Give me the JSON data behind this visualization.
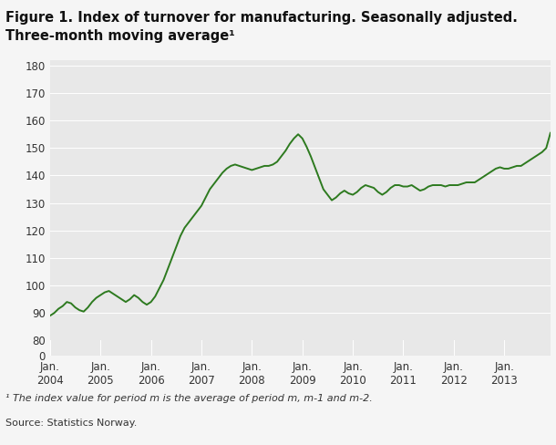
{
  "title_line1": "Figure 1. Index of turnover for manufacturing. Seasonally adjusted.",
  "title_line2": "Three-month moving average¹",
  "line_color": "#2d7a1f",
  "background_color": "#f5f5f5",
  "plot_background": "#e8e8e8",
  "ylim_main": [
    80,
    182
  ],
  "ylim_zero": [
    0,
    5
  ],
  "yticks_main": [
    80,
    90,
    100,
    110,
    120,
    130,
    140,
    150,
    160,
    170,
    180
  ],
  "footnote1": "¹ The index value for period m is the average of period m, m-1 and m-2.",
  "footnote2": "Source: Statistics Norway.",
  "xtick_labels": [
    "Jan.\n2004",
    "Jan.\n2005",
    "Jan.\n2006",
    "Jan.\n2007",
    "Jan.\n2008",
    "Jan.\n2009",
    "Jan.\n2010",
    "Jan.\n2011",
    "Jan.\n2012",
    "Jan.\n2013"
  ],
  "xtick_positions": [
    0,
    12,
    24,
    36,
    48,
    60,
    72,
    84,
    96,
    108
  ],
  "values": [
    89.0,
    90.0,
    91.5,
    92.5,
    94.0,
    93.5,
    92.0,
    91.0,
    90.5,
    92.0,
    94.0,
    95.5,
    96.5,
    97.5,
    98.0,
    97.0,
    96.0,
    95.0,
    94.0,
    95.0,
    96.5,
    95.5,
    94.0,
    93.0,
    94.0,
    96.0,
    99.0,
    102.0,
    106.0,
    110.0,
    114.0,
    118.0,
    121.0,
    123.0,
    125.0,
    127.0,
    129.0,
    132.0,
    135.0,
    137.0,
    139.0,
    141.0,
    142.5,
    143.5,
    144.0,
    143.5,
    143.0,
    142.5,
    142.0,
    142.5,
    143.0,
    143.5,
    143.5,
    144.0,
    145.0,
    147.0,
    149.0,
    151.5,
    153.5,
    155.0,
    153.5,
    150.5,
    147.0,
    143.0,
    139.0,
    135.0,
    133.0,
    131.0,
    132.0,
    133.5,
    134.5,
    133.5,
    133.0,
    134.0,
    135.5,
    136.5,
    136.0,
    135.5,
    134.0,
    133.0,
    134.0,
    135.5,
    136.5,
    136.5,
    136.0,
    136.0,
    136.5,
    135.5,
    134.5,
    135.0,
    136.0,
    136.5,
    136.5,
    136.5,
    136.0,
    136.5,
    136.5,
    136.5,
    137.0,
    137.5,
    137.5,
    137.5,
    138.5,
    139.5,
    140.5,
    141.5,
    142.5,
    143.0,
    142.5,
    142.5,
    143.0,
    143.5,
    143.5,
    144.5,
    145.5,
    146.5,
    147.5,
    148.5,
    150.0,
    155.5
  ]
}
